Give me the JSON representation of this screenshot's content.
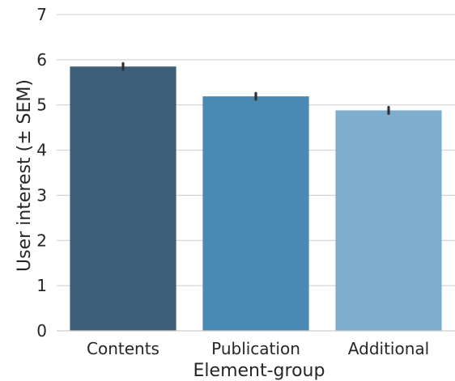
{
  "chart_data": {
    "type": "bar",
    "categories": [
      "Contents",
      "Publication",
      "Additional"
    ],
    "values": [
      5.85,
      5.19,
      4.88
    ],
    "sem": [
      0.07,
      0.07,
      0.07
    ],
    "colors": [
      "#3d5f78",
      "#4a89b4",
      "#7eadcd"
    ],
    "xlabel": "Element-group",
    "ylabel": "User interest (± SEM)",
    "ylim": [
      0,
      7
    ],
    "yticks": [
      "0",
      "1",
      "2",
      "3",
      "4",
      "5",
      "6",
      "7"
    ],
    "grid": true
  }
}
